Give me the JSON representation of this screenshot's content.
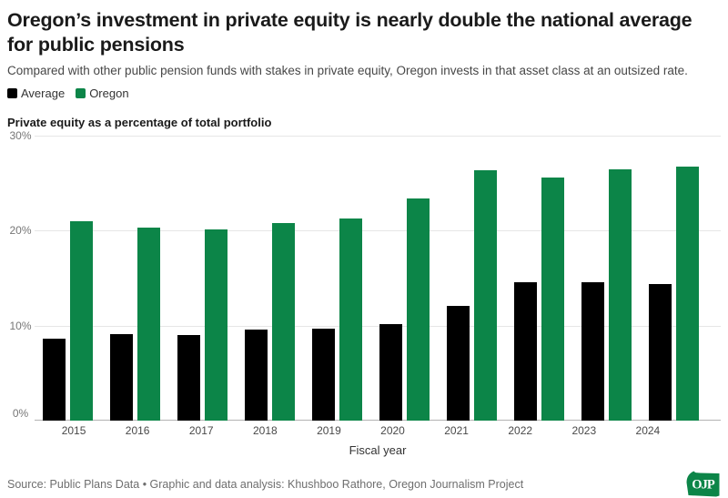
{
  "header": {
    "title": "Oregon’s investment in private equity is nearly double the national average for public pensions",
    "subtitle": "Compared with other public pension funds with stakes in private equity, Oregon invests in that asset class at an outsized rate."
  },
  "chart_data": {
    "type": "bar",
    "title": "Private equity as a percentage of total portfolio",
    "xlabel": "Fiscal year",
    "ylabel": "Private equity as a percentage of total portfolio",
    "ylim": [
      0,
      30
    ],
    "yticks": [
      "30%",
      "20%",
      "10%",
      "0%"
    ],
    "grid": true,
    "legend_position": "top-left",
    "categories": [
      "2015",
      "2016",
      "2017",
      "2018",
      "2019",
      "2020",
      "2021",
      "2022",
      "2023",
      "2024"
    ],
    "series": [
      {
        "name": "Average",
        "color": "#000000",
        "values": [
          8.6,
          9.1,
          9.0,
          9.6,
          9.7,
          10.2,
          12.1,
          14.6,
          14.6,
          14.4
        ]
      },
      {
        "name": "Oregon",
        "color": "#0c8548",
        "values": [
          21.0,
          20.3,
          20.1,
          20.8,
          21.3,
          23.4,
          26.4,
          25.6,
          26.5,
          26.8
        ]
      }
    ]
  },
  "footer": {
    "source": "Source: Public Plans Data • Graphic and data analysis: Khushboo Rathore, Oregon Journalism Project",
    "logo_text": "OJP",
    "logo_color": "#0c8548"
  }
}
